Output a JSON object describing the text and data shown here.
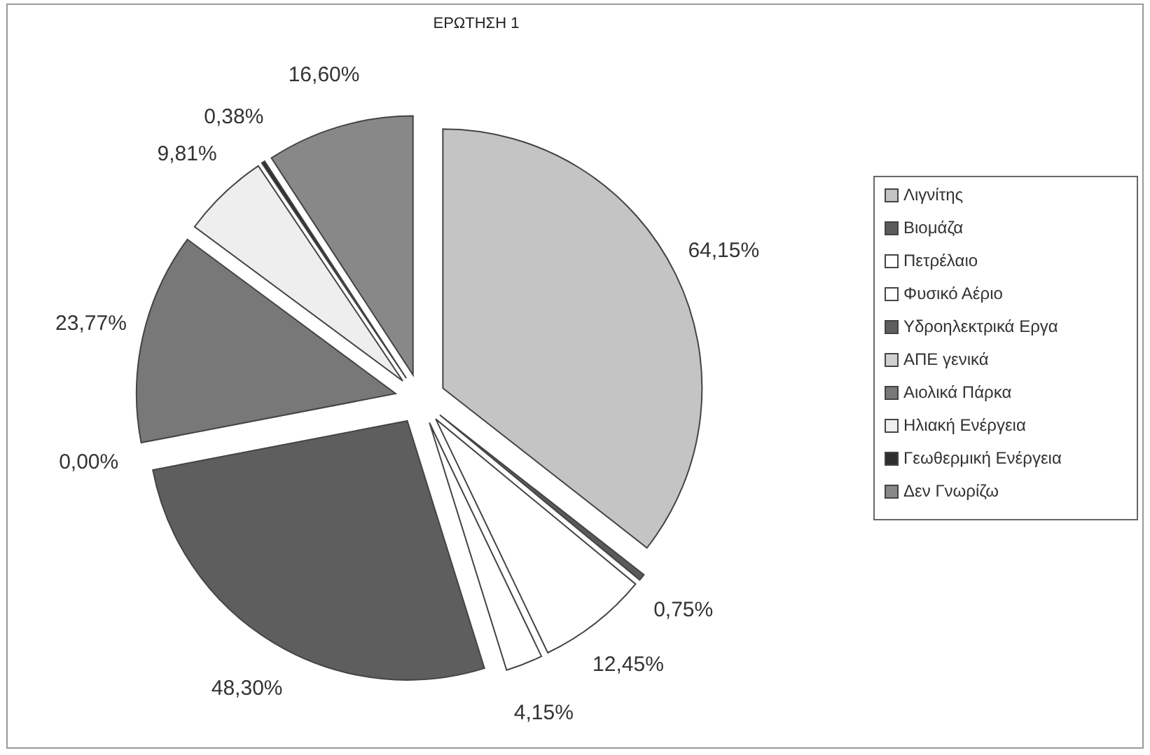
{
  "chart_data": {
    "type": "pie",
    "title": "ΕΡΩΤΗΣΗ 1",
    "categories": [
      "Λιγνίτης",
      "Βιομάζα",
      "Πετρέλαιο",
      "Φυσικό Αέριο",
      "Υδροηλεκτρικά Εργα",
      "ΑΠΕ γενικά",
      "Αιολικά Πάρκα",
      "Ηλιακή Ενέργεια",
      "Γεωθερμική Ενέργεια",
      "Δεν Γνωρίζω"
    ],
    "values": [
      64.15,
      0.75,
      12.45,
      4.15,
      48.3,
      0.0,
      23.77,
      9.81,
      0.38,
      16.6
    ],
    "value_labels": [
      "64,15%",
      "0,75%",
      "12,45%",
      "4,15%",
      "48,30%",
      "0,00%",
      "23,77%",
      "9,81%",
      "0,38%",
      "16,60%"
    ],
    "colors": [
      "#c4c4c4",
      "#5a5a5a",
      "#ffffff",
      "#ffffff",
      "#5e5e5e",
      "#d0d0d0",
      "#787878",
      "#eeeeee",
      "#2e2e2e",
      "#888888"
    ],
    "legend": "right"
  }
}
